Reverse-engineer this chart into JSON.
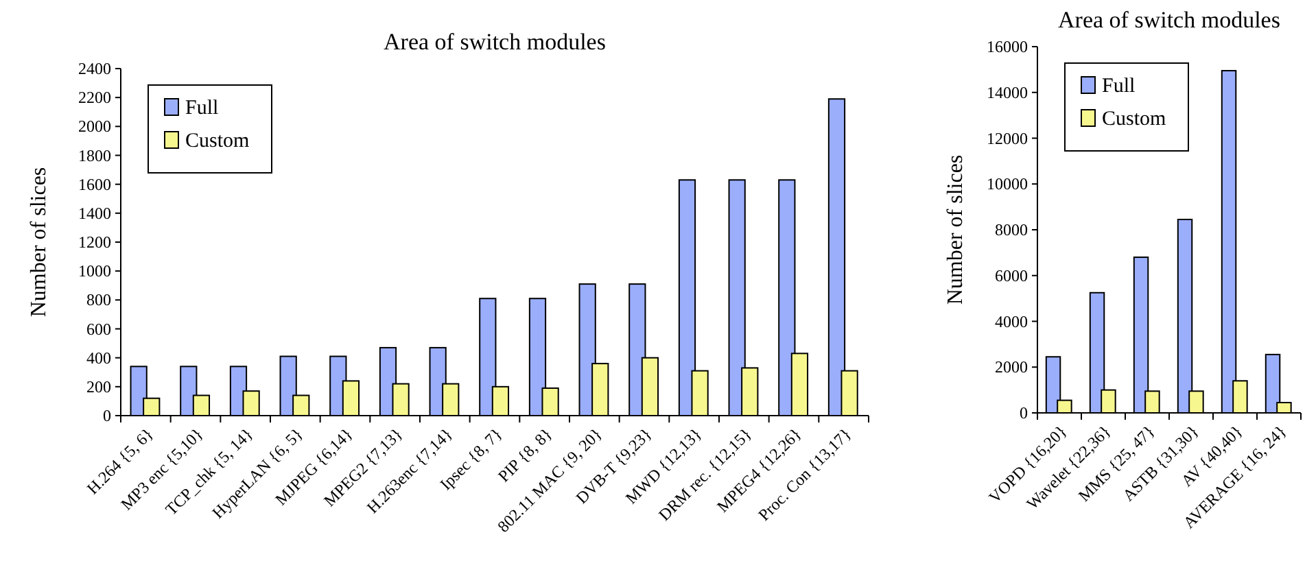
{
  "chart_data": [
    {
      "type": "bar",
      "title": "Area of switch modules",
      "ylabel": "Number of slices",
      "categories": [
        "H.264 {5, 6}",
        "MP3 enc {5,10}",
        "TCP_chk {5, 14}",
        "HyperLAN {6, 5}",
        "MJPEG {6,14}",
        "MPEG2 {7,13}",
        "H.263enc {7,14}",
        "Ipsec {8, 7}",
        "PIP {8, 8}",
        "802.11 MAC {9, 20}",
        "DVB-T {9,23}",
        "MWD {12,13}",
        "DRM rec. {12,15}",
        "MPEG4 {12,26}",
        "Proc. Con {13,17}"
      ],
      "series": [
        {
          "name": "Full",
          "color": "#9aaefc",
          "values": [
            340,
            340,
            340,
            410,
            410,
            470,
            470,
            810,
            810,
            910,
            910,
            1630,
            1630,
            1630,
            2190
          ]
        },
        {
          "name": "Custom",
          "color": "#f7f78f",
          "values": [
            120,
            140,
            170,
            140,
            240,
            220,
            220,
            200,
            190,
            360,
            400,
            310,
            330,
            430,
            310
          ]
        }
      ],
      "ylim": [
        0,
        2400
      ],
      "yticks": [
        0,
        200,
        400,
        600,
        800,
        1000,
        1200,
        1400,
        1600,
        1800,
        2000,
        2200,
        2400
      ],
      "legend": "top left",
      "grid": false
    },
    {
      "type": "bar",
      "title": "Area of switch modules",
      "ylabel": "Number of slices",
      "categories": [
        "VOPD {16,20}",
        "Wavelet {22,36}",
        "MMS {25, 47}",
        "ASTB {31,30}",
        "AV {40,40}",
        "AVERAGE {16, 24}"
      ],
      "series": [
        {
          "name": "Full",
          "color": "#9aaefc",
          "values": [
            2450,
            5250,
            6800,
            8450,
            14950,
            2550
          ]
        },
        {
          "name": "Custom",
          "color": "#f7f78f",
          "values": [
            550,
            1000,
            950,
            950,
            1400,
            450
          ]
        }
      ],
      "ylim": [
        0,
        16000
      ],
      "yticks": [
        0,
        2000,
        4000,
        6000,
        8000,
        10000,
        12000,
        14000,
        16000
      ],
      "legend": "top left",
      "grid": false
    }
  ]
}
